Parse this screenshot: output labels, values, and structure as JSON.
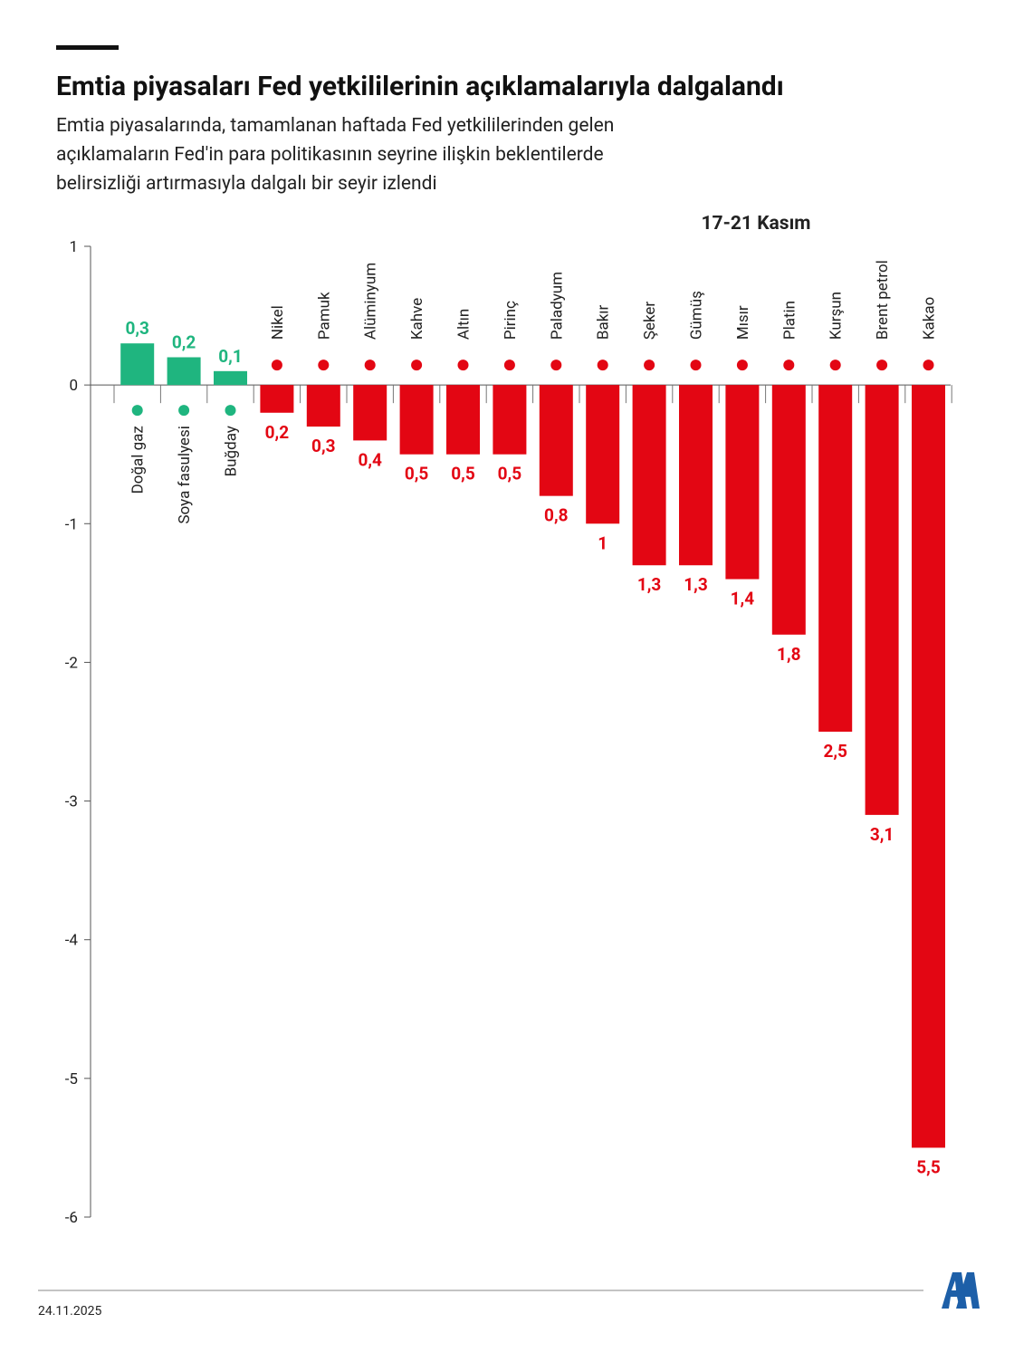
{
  "chart_data": {
    "type": "bar",
    "title": "Emtia piyasaları Fed yetkililerinin açıklamalarıyla dalgalandı",
    "subtitle": [
      "Emtia piyasalarında, tamamlanan haftada Fed yetkililerinden gelen",
      "açıklamaların Fed'in para politikasının seyrine ilişkin beklentilerde",
      "belirsizliği artırmasıyla dalgalı bir seyir izlendi"
    ],
    "period": "17-21 Kasım",
    "categories": [
      "Doğal gaz",
      "Soya fasulyesi",
      "Buğday",
      "Nikel",
      "Pamuk",
      "Alüminyum",
      "Kahve",
      "Altın",
      "Pirinç",
      "Paladyum",
      "Bakır",
      "Şeker",
      "Gümüş",
      "Mısır",
      "Platin",
      "Kurşun",
      "Brent petrol",
      "Kakao"
    ],
    "values": [
      0.3,
      0.2,
      0.1,
      -0.2,
      -0.3,
      -0.4,
      -0.5,
      -0.5,
      -0.5,
      -0.8,
      -1,
      -1.3,
      -1.3,
      -1.4,
      -1.8,
      -2.5,
      -3.1,
      -5.5
    ],
    "value_labels": [
      "0,3",
      "0,2",
      "0,1",
      "0,2",
      "0,3",
      "0,4",
      "0,5",
      "0,5",
      "0,5",
      "0,8",
      "1",
      "1,3",
      "1,3",
      "1,4",
      "1,8",
      "2,5",
      "3,1",
      "5,5"
    ],
    "positive_color": "#1fb57f",
    "negative_color": "#e30613",
    "ylim": [
      -6,
      1
    ],
    "yticks": [
      -6,
      -5,
      -4,
      -3,
      -2,
      -1,
      0,
      1
    ]
  },
  "footer": {
    "date": "24.11.2025"
  }
}
